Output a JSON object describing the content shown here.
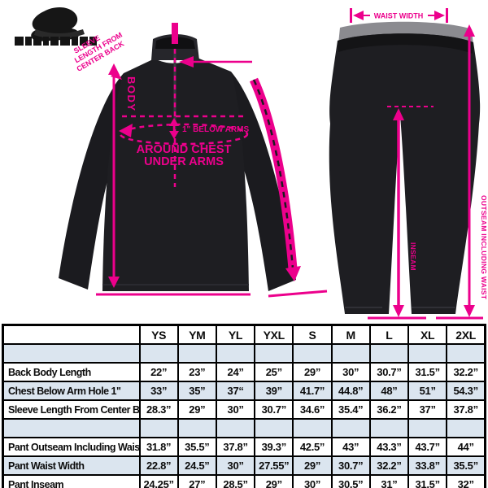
{
  "colors": {
    "accent": "#EC008C",
    "garment": "#1E1E22",
    "table_alt_row": "#DBE5EF",
    "table_border": "#000000"
  },
  "brand": {
    "logo": "skull-cap-emblem"
  },
  "jacket_diagram": {
    "body_label": "BODY",
    "below_arms_label": "1\" BELOW ARMS",
    "around_chest_line1": "AROUND CHEST",
    "around_chest_line2": "UNDER ARMS",
    "sleeve_note_lines": [
      "SLEEVE",
      "LENGTH FROM",
      "CENTER BACK"
    ]
  },
  "pants_diagram": {
    "waist_label": "WAIST WIDTH",
    "outseam_label": "OUTSEAM INCLUDING WAIST",
    "inseam_label": "INSEAM"
  },
  "size_table": {
    "columns": [
      "",
      "YS",
      "YM",
      "YL",
      "YXL",
      "S",
      "M",
      "L",
      "XL",
      "2XL"
    ],
    "rows": [
      {
        "label": "",
        "values": [
          "",
          "",
          "",
          "",
          "",
          "",
          "",
          "",
          ""
        ]
      },
      {
        "label": "Back Body Length",
        "values": [
          "22”",
          "23”",
          "24”",
          "25”",
          "29”",
          "30”",
          "30.7”",
          "31.5”",
          "32.2”"
        ]
      },
      {
        "label": "Chest Below Arm Hole 1\"",
        "values": [
          "33”",
          "35”",
          "37“",
          "39”",
          "41.7”",
          "44.8”",
          "48”",
          "51”",
          "54.3”"
        ]
      },
      {
        "label": "Sleeve Length From Center Back",
        "values": [
          "28.3”",
          "29”",
          "30”",
          "30.7”",
          "34.6”",
          "35.4”",
          "36.2”",
          "37”",
          "37.8”"
        ]
      },
      {
        "label": "",
        "values": [
          "",
          "",
          "",
          "",
          "",
          "",
          "",
          "",
          ""
        ]
      },
      {
        "label": "Pant Outseam Including Waist",
        "values": [
          "31.8”",
          "35.5”",
          "37.8”",
          "39.3”",
          "42.5”",
          "43”",
          "43.3”",
          "43.7”",
          "44”"
        ]
      },
      {
        "label": "Pant Waist Width",
        "values": [
          "22.8”",
          "24.5”",
          "30”",
          "27.55”",
          "29”",
          "30.7”",
          "32.2”",
          "33.8”",
          "35.5”"
        ]
      },
      {
        "label": "Pant Inseam",
        "values": [
          "24.25”",
          "27”",
          "28.5”",
          "29”",
          "30”",
          "30.5”",
          "31”",
          "31.5”",
          "32”"
        ]
      }
    ]
  }
}
